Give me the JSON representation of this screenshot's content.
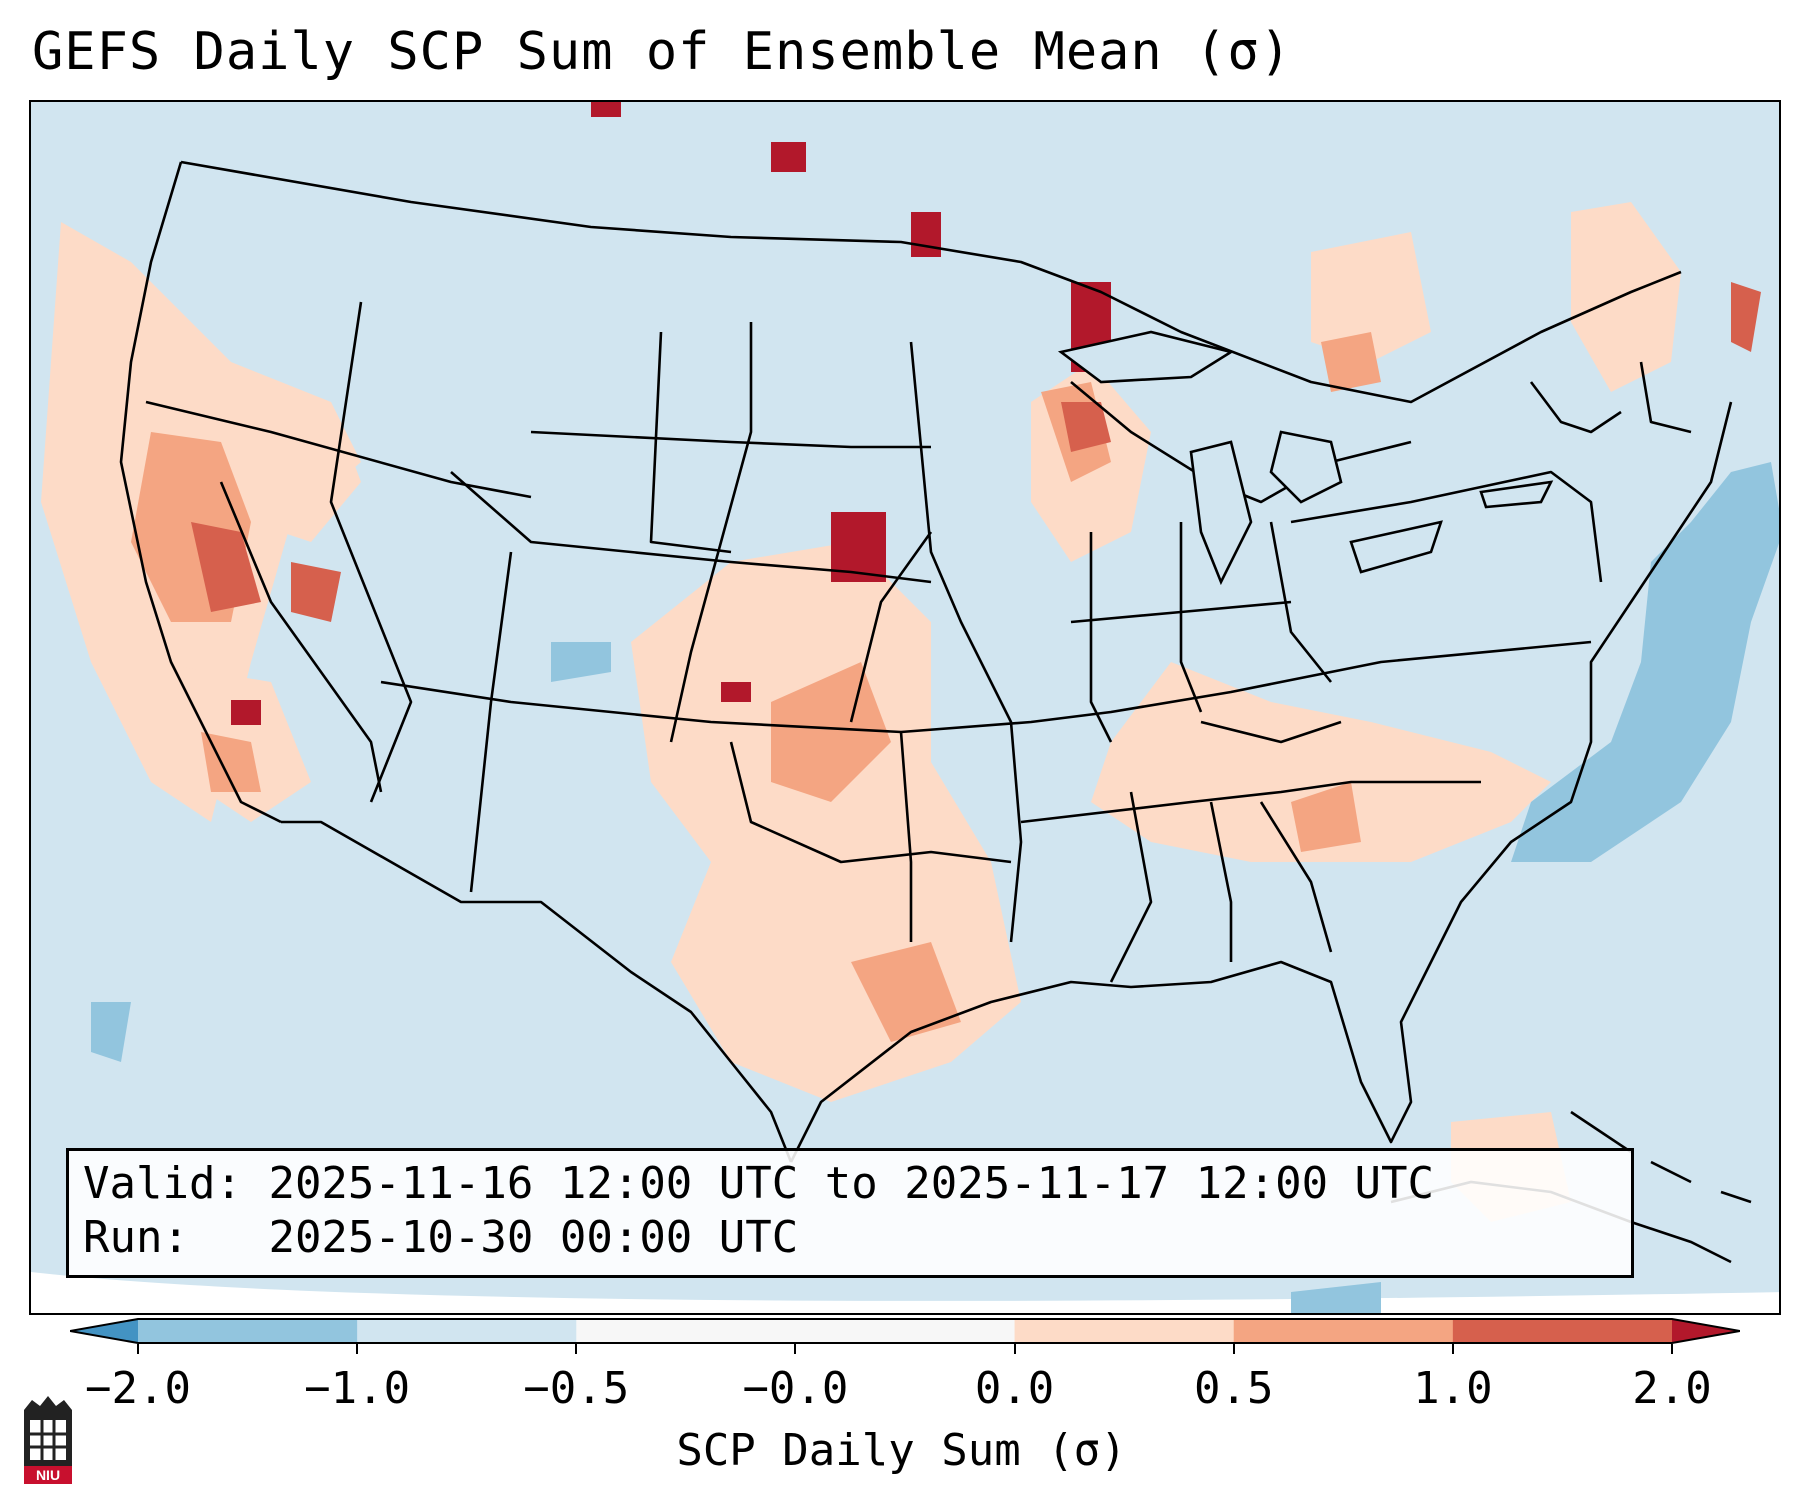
{
  "title": "GEFS Daily SCP Sum of Ensemble Mean (σ)",
  "info": {
    "valid_label": "Valid:",
    "valid_value": "2025-11-16 12:00 UTC to 2025-11-17 12:00 UTC",
    "run_label": "Run:",
    "run_value": "2025-10-30 00:00 UTC"
  },
  "colorbar": {
    "label": "SCP Daily Sum (σ)",
    "ticks": [
      "−2.0",
      "−1.0",
      "−0.5",
      "−0.0",
      "0.0",
      "0.5",
      "1.0",
      "2.0"
    ],
    "colors": [
      "#4393c3",
      "#92c5de",
      "#d1e5f0",
      "#f7f7f7",
      "#fddbc7",
      "#f4a582",
      "#d6604d",
      "#b2182b"
    ]
  },
  "logo": {
    "text": "NIU"
  },
  "map_colors": {
    "background_fill": "#d1e5f0",
    "outside_domain": "#ffffff"
  }
}
